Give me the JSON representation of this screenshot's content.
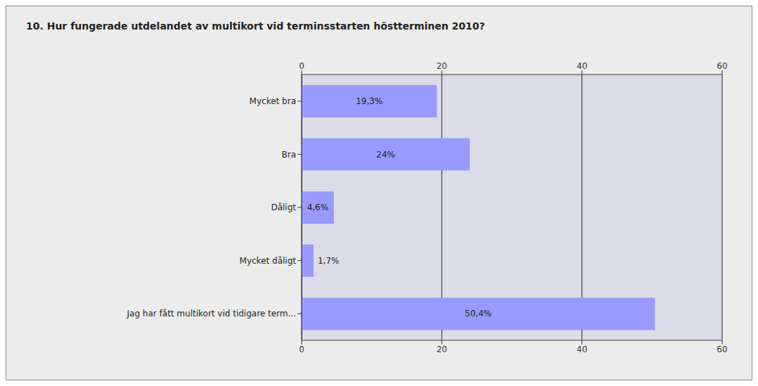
{
  "chart_data": {
    "type": "bar",
    "title": "10. Hur fungerade utdelandet av multikort vid terminsstarten höstterminen 2010?",
    "categories": [
      "Mycket bra",
      "Bra",
      "Dåligt",
      "Mycket dåligt",
      "Jag har fått multikort vid tidigare term..."
    ],
    "values": [
      19.3,
      24,
      4.6,
      1.7,
      50.4
    ],
    "value_labels": [
      "19,3%",
      "24%",
      "4,6%",
      "1,7%",
      "50,4%"
    ],
    "color": "#9999ff",
    "orientation": "horizontal",
    "xlim": [
      0,
      60
    ],
    "xticks": [
      0,
      20,
      40,
      60
    ],
    "grid": true,
    "data_labels": true
  }
}
